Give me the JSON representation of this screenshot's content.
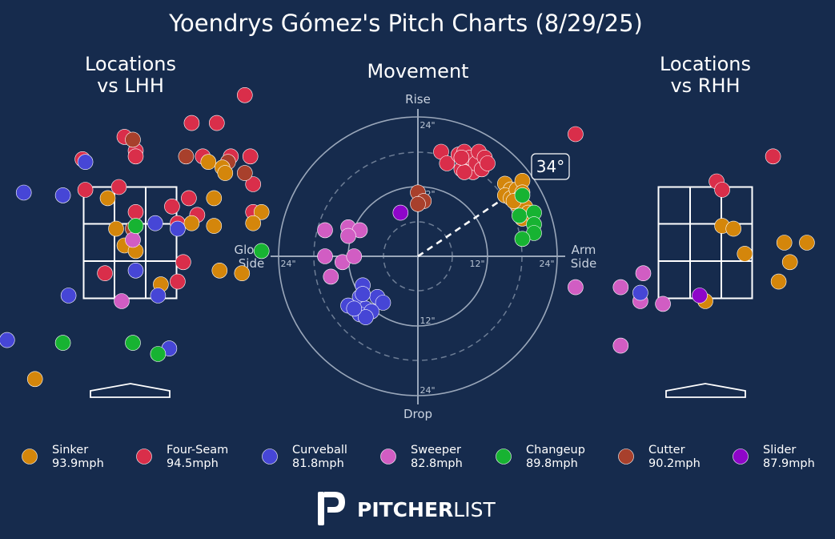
{
  "title": "Yoendrys Gómez's Pitch Charts (8/29/25)",
  "panels": {
    "lhh_title": [
      "Locations",
      "vs LHH"
    ],
    "movement_title": "Movement",
    "rhh_title": [
      "Locations",
      "vs RHH"
    ]
  },
  "movement_axes": {
    "top": "Rise",
    "bottom": "Drop",
    "left": [
      "Glove",
      "Side"
    ],
    "right": [
      "Arm",
      "Side"
    ],
    "ring_labels": [
      "24\"",
      "12\"",
      "12\"",
      "24\"",
      "24\"",
      "12\"",
      "24\""
    ]
  },
  "arm_angle_label": "34°",
  "brand": {
    "bold": "PITCHER",
    "light": "LIST"
  },
  "pitch_types": [
    {
      "key": "sinker",
      "name": "Sinker",
      "velo": "93.9mph",
      "color": "#d4860b"
    },
    {
      "key": "fourseam",
      "name": "Four-Seam",
      "velo": "94.5mph",
      "color": "#d92e4a"
    },
    {
      "key": "curveball",
      "name": "Curveball",
      "velo": "81.8mph",
      "color": "#4646d6"
    },
    {
      "key": "sweeper",
      "name": "Sweeper",
      "velo": "82.8mph",
      "color": "#d15dc3"
    },
    {
      "key": "changeup",
      "name": "Changeup",
      "velo": "89.8mph",
      "color": "#17b332"
    },
    {
      "key": "cutter",
      "name": "Cutter",
      "velo": "90.2mph",
      "color": "#a8402c"
    },
    {
      "key": "slider",
      "name": "Slider",
      "velo": "87.9mph",
      "color": "#8e06c9"
    }
  ],
  "chart_data": [
    {
      "type": "scatter",
      "title": "Locations vs LHH",
      "xlim": [
        -2.3,
        2.3
      ],
      "ylim": [
        -0.5,
        5.2
      ],
      "points": [
        {
          "t": "fourseam",
          "x": 2.05,
          "y": 5.15
        },
        {
          "t": "fourseam",
          "x": 1.1,
          "y": 4.65
        },
        {
          "t": "fourseam",
          "x": 1.55,
          "y": 4.65
        },
        {
          "t": "fourseam",
          "x": -0.1,
          "y": 4.4
        },
        {
          "t": "fourseam",
          "x": 0.1,
          "y": 4.15
        },
        {
          "t": "fourseam",
          "x": 0.1,
          "y": 4.05
        },
        {
          "t": "fourseam",
          "x": 1.8,
          "y": 4.05
        },
        {
          "t": "fourseam",
          "x": 2.15,
          "y": 4.05
        },
        {
          "t": "fourseam",
          "x": 1.3,
          "y": 4.05
        },
        {
          "t": "fourseam",
          "x": -0.85,
          "y": 4.0
        },
        {
          "t": "fourseam",
          "x": -0.8,
          "y": 3.45
        },
        {
          "t": "fourseam",
          "x": -0.2,
          "y": 3.5
        },
        {
          "t": "fourseam",
          "x": 2.2,
          "y": 3.55
        },
        {
          "t": "fourseam",
          "x": 1.05,
          "y": 3.3
        },
        {
          "t": "fourseam",
          "x": 0.1,
          "y": 3.05
        },
        {
          "t": "fourseam",
          "x": 0.75,
          "y": 3.15
        },
        {
          "t": "fourseam",
          "x": 1.2,
          "y": 3.0
        },
        {
          "t": "fourseam",
          "x": 2.2,
          "y": 3.05
        },
        {
          "t": "fourseam",
          "x": 0.85,
          "y": 2.85
        },
        {
          "t": "fourseam",
          "x": 0.95,
          "y": 2.15
        },
        {
          "t": "fourseam",
          "x": -0.45,
          "y": 1.95
        },
        {
          "t": "fourseam",
          "x": 0.85,
          "y": 1.8
        },
        {
          "t": "cutter",
          "x": 0.05,
          "y": 4.35
        },
        {
          "t": "cutter",
          "x": 1.0,
          "y": 4.05
        },
        {
          "t": "cutter",
          "x": 1.75,
          "y": 3.95
        },
        {
          "t": "cutter",
          "x": 2.05,
          "y": 3.75
        },
        {
          "t": "cutter",
          "x": 0.05,
          "y": 2.75
        },
        {
          "t": "sinker",
          "x": 1.4,
          "y": 3.95
        },
        {
          "t": "sinker",
          "x": 1.65,
          "y": 3.85
        },
        {
          "t": "sinker",
          "x": 1.7,
          "y": 3.75
        },
        {
          "t": "sinker",
          "x": -0.4,
          "y": 3.3
        },
        {
          "t": "sinker",
          "x": 1.5,
          "y": 3.3
        },
        {
          "t": "sinker",
          "x": 2.35,
          "y": 3.05
        },
        {
          "t": "sinker",
          "x": 1.1,
          "y": 2.85
        },
        {
          "t": "sinker",
          "x": 1.5,
          "y": 2.8
        },
        {
          "t": "sinker",
          "x": 2.2,
          "y": 2.85
        },
        {
          "t": "sinker",
          "x": -0.25,
          "y": 2.75
        },
        {
          "t": "sinker",
          "x": -0.1,
          "y": 2.45
        },
        {
          "t": "sinker",
          "x": 0.1,
          "y": 2.35
        },
        {
          "t": "sinker",
          "x": 1.6,
          "y": 2.0
        },
        {
          "t": "sinker",
          "x": 2.0,
          "y": 1.95
        },
        {
          "t": "sinker",
          "x": 0.55,
          "y": 1.75
        },
        {
          "t": "sinker",
          "x": -1.7,
          "y": 0.05
        },
        {
          "t": "curveball",
          "x": -0.8,
          "y": 3.95
        },
        {
          "t": "curveball",
          "x": -1.9,
          "y": 3.4
        },
        {
          "t": "curveball",
          "x": -1.2,
          "y": 3.35
        },
        {
          "t": "curveball",
          "x": 0.45,
          "y": 2.85
        },
        {
          "t": "curveball",
          "x": 0.85,
          "y": 2.75
        },
        {
          "t": "curveball",
          "x": 0.1,
          "y": 2.0
        },
        {
          "t": "curveball",
          "x": -1.1,
          "y": 1.55
        },
        {
          "t": "curveball",
          "x": 0.5,
          "y": 1.55
        },
        {
          "t": "curveball",
          "x": -2.2,
          "y": 0.75
        },
        {
          "t": "curveball",
          "x": 0.7,
          "y": 0.6
        },
        {
          "t": "sweeper",
          "x": 0.05,
          "y": 2.55
        },
        {
          "t": "sweeper",
          "x": -0.15,
          "y": 1.45
        },
        {
          "t": "changeup",
          "x": 0.1,
          "y": 2.8
        },
        {
          "t": "changeup",
          "x": 2.35,
          "y": 2.35
        },
        {
          "t": "changeup",
          "x": -1.2,
          "y": 0.7
        },
        {
          "t": "changeup",
          "x": 0.05,
          "y": 0.7
        },
        {
          "t": "changeup",
          "x": 0.5,
          "y": 0.5
        }
      ]
    },
    {
      "type": "scatter",
      "title": "Movement",
      "xlabel": "Glove Side / Arm Side",
      "ylabel": "Drop / Rise",
      "xlim": [
        -24,
        24
      ],
      "ylim": [
        -24,
        24
      ],
      "arm_angle_deg": 34,
      "points": [
        {
          "t": "fourseam",
          "x": 4,
          "y": 18
        },
        {
          "t": "fourseam",
          "x": 5,
          "y": 16
        },
        {
          "t": "fourseam",
          "x": 7,
          "y": 17.5
        },
        {
          "t": "fourseam",
          "x": 7.5,
          "y": 15
        },
        {
          "t": "fourseam",
          "x": 8,
          "y": 18
        },
        {
          "t": "fourseam",
          "x": 9,
          "y": 17
        },
        {
          "t": "fourseam",
          "x": 9.5,
          "y": 14.5
        },
        {
          "t": "fourseam",
          "x": 10,
          "y": 16
        },
        {
          "t": "fourseam",
          "x": 10.5,
          "y": 18
        },
        {
          "t": "fourseam",
          "x": 11,
          "y": 15
        },
        {
          "t": "fourseam",
          "x": 11.5,
          "y": 17
        },
        {
          "t": "fourseam",
          "x": 12,
          "y": 16
        },
        {
          "t": "fourseam",
          "x": 8,
          "y": 14.5
        },
        {
          "t": "fourseam",
          "x": 7.5,
          "y": 17
        },
        {
          "t": "sinker",
          "x": 15,
          "y": 12.5
        },
        {
          "t": "sinker",
          "x": 16,
          "y": 11.5
        },
        {
          "t": "sinker",
          "x": 15,
          "y": 10.5
        },
        {
          "t": "sinker",
          "x": 16,
          "y": 10
        },
        {
          "t": "sinker",
          "x": 17,
          "y": 11.5
        },
        {
          "t": "sinker",
          "x": 17.5,
          "y": 10
        },
        {
          "t": "sinker",
          "x": 18,
          "y": 13
        },
        {
          "t": "sinker",
          "x": 17,
          "y": 9
        },
        {
          "t": "sinker",
          "x": 18.5,
          "y": 8.5
        },
        {
          "t": "sinker",
          "x": 18,
          "y": 6.5
        },
        {
          "t": "sinker",
          "x": 19,
          "y": 7.5
        },
        {
          "t": "sinker",
          "x": 16.5,
          "y": 9.5
        },
        {
          "t": "sinker",
          "x": 18,
          "y": 11
        },
        {
          "t": "changeup",
          "x": 18,
          "y": 10.5
        },
        {
          "t": "changeup",
          "x": 17.5,
          "y": 7
        },
        {
          "t": "changeup",
          "x": 20,
          "y": 7.5
        },
        {
          "t": "changeup",
          "x": 20,
          "y": 5.5
        },
        {
          "t": "changeup",
          "x": 20,
          "y": 4
        },
        {
          "t": "changeup",
          "x": 18,
          "y": 3
        },
        {
          "t": "cutter",
          "x": 0,
          "y": 11
        },
        {
          "t": "cutter",
          "x": 1,
          "y": 9.5
        },
        {
          "t": "cutter",
          "x": 0,
          "y": 9
        },
        {
          "t": "slider",
          "x": -3,
          "y": 7.5
        },
        {
          "t": "sweeper",
          "x": -16,
          "y": 4.5
        },
        {
          "t": "sweeper",
          "x": -12,
          "y": 5
        },
        {
          "t": "sweeper",
          "x": -10,
          "y": 4.5
        },
        {
          "t": "sweeper",
          "x": -12,
          "y": 3.5
        },
        {
          "t": "sweeper",
          "x": -16,
          "y": 0
        },
        {
          "t": "sweeper",
          "x": -13,
          "y": -1
        },
        {
          "t": "sweeper",
          "x": -11,
          "y": 0
        },
        {
          "t": "sweeper",
          "x": -15,
          "y": -3.5
        },
        {
          "t": "curveball",
          "x": -9.5,
          "y": -5
        },
        {
          "t": "curveball",
          "x": -10,
          "y": -7
        },
        {
          "t": "curveball",
          "x": -7,
          "y": -7
        },
        {
          "t": "curveball",
          "x": -6,
          "y": -8
        },
        {
          "t": "curveball",
          "x": -9,
          "y": -9
        },
        {
          "t": "curveball",
          "x": -12,
          "y": -8.5
        },
        {
          "t": "curveball",
          "x": -10,
          "y": -10
        },
        {
          "t": "curveball",
          "x": -8,
          "y": -9.5
        },
        {
          "t": "curveball",
          "x": -9,
          "y": -10.5
        },
        {
          "t": "curveball",
          "x": -11,
          "y": -9
        },
        {
          "t": "curveball",
          "x": -9.5,
          "y": -6.5
        }
      ]
    },
    {
      "type": "scatter",
      "title": "Locations vs RHH",
      "xlim": [
        -2.3,
        2.3
      ],
      "ylim": [
        -0.5,
        5.2
      ],
      "points": [
        {
          "t": "fourseam",
          "x": -2.3,
          "y": 4.45
        },
        {
          "t": "fourseam",
          "x": 1.2,
          "y": 4.05
        },
        {
          "t": "fourseam",
          "x": 0.2,
          "y": 3.6
        },
        {
          "t": "fourseam",
          "x": 0.3,
          "y": 3.45
        },
        {
          "t": "sinker",
          "x": 0.3,
          "y": 2.8
        },
        {
          "t": "sinker",
          "x": 0.5,
          "y": 2.75
        },
        {
          "t": "sinker",
          "x": 1.4,
          "y": 2.5
        },
        {
          "t": "sinker",
          "x": 1.8,
          "y": 2.5
        },
        {
          "t": "sinker",
          "x": 2.45,
          "y": 2.35
        },
        {
          "t": "sinker",
          "x": 0.7,
          "y": 2.3
        },
        {
          "t": "sinker",
          "x": 1.5,
          "y": 2.15
        },
        {
          "t": "sinker",
          "x": 1.3,
          "y": 1.8
        },
        {
          "t": "sinker",
          "x": 0.0,
          "y": 1.45
        },
        {
          "t": "sweeper",
          "x": -1.1,
          "y": 1.95
        },
        {
          "t": "sweeper",
          "x": -1.5,
          "y": 1.7
        },
        {
          "t": "sweeper",
          "x": -1.15,
          "y": 1.45
        },
        {
          "t": "sweeper",
          "x": -0.75,
          "y": 1.4
        },
        {
          "t": "sweeper",
          "x": -1.5,
          "y": 0.65
        },
        {
          "t": "sweeper",
          "x": -2.3,
          "y": 1.7
        },
        {
          "t": "curveball",
          "x": -1.15,
          "y": 1.6
        },
        {
          "t": "slider",
          "x": -0.1,
          "y": 1.55
        }
      ]
    }
  ]
}
